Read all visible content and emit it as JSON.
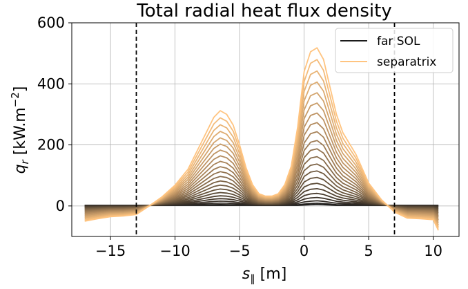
{
  "chart_data": {
    "type": "line",
    "title": "Total radial heat flux density",
    "xlabel": {
      "main": "s",
      "sub": "∥",
      "unit": " [m]"
    },
    "ylabel": {
      "main": "q",
      "sub": "r",
      "unit_pre": " [kW.m",
      "unit_sup": "−2",
      "unit_post": "]"
    },
    "xlim": [
      -18,
      12
    ],
    "ylim": [
      -100,
      600
    ],
    "xticks": [
      -15,
      -10,
      -5,
      0,
      5,
      10
    ],
    "xtick_labels": [
      "−15",
      "−10",
      "−5",
      "0",
      "5",
      "10"
    ],
    "yticks": [
      0,
      200,
      400,
      600
    ],
    "ytick_labels": [
      "0",
      "200",
      "400",
      "600"
    ],
    "grid": true,
    "legend": {
      "placement": "top-right",
      "entries": [
        {
          "label": "far SOL",
          "color": "#1a1a1a"
        },
        {
          "label": "separatrix",
          "color": "#ffc480"
        }
      ]
    },
    "vlines": [
      {
        "x": -13,
        "style": "dashed",
        "color": "#000000"
      },
      {
        "x": 7,
        "style": "dashed",
        "color": "#000000"
      }
    ],
    "series_count": 22,
    "color_start": "#1a1a1a",
    "color_end": "#ffc480",
    "x": [
      -17,
      -16,
      -15,
      -14,
      -13,
      -12,
      -11,
      -10,
      -9,
      -8,
      -7,
      -6.5,
      -6,
      -5.5,
      -5,
      -4.5,
      -4,
      -3.5,
      -3,
      -2.5,
      -2,
      -1.5,
      -1,
      -0.5,
      0,
      0.5,
      1,
      1.5,
      2,
      2.5,
      3,
      4,
      5,
      6,
      7,
      8,
      9,
      10,
      10.4
    ],
    "separatrix": [
      -50,
      -42,
      -35,
      -33,
      -28,
      0,
      30,
      68,
      120,
      205,
      290,
      312,
      300,
      265,
      200,
      125,
      70,
      40,
      32,
      32,
      40,
      70,
      130,
      260,
      440,
      505,
      518,
      480,
      390,
      300,
      240,
      170,
      75,
      20,
      -20,
      -40,
      -42,
      -45,
      -80
    ],
    "far_sol": [
      2,
      2,
      2,
      2,
      2,
      2,
      2,
      2,
      2,
      2,
      2,
      2,
      2,
      2,
      2,
      2,
      2,
      2,
      2,
      2,
      2,
      2,
      2,
      2,
      3,
      4,
      5,
      4,
      3,
      2,
      2,
      2,
      2,
      2,
      2,
      2,
      2,
      2,
      2
    ]
  }
}
